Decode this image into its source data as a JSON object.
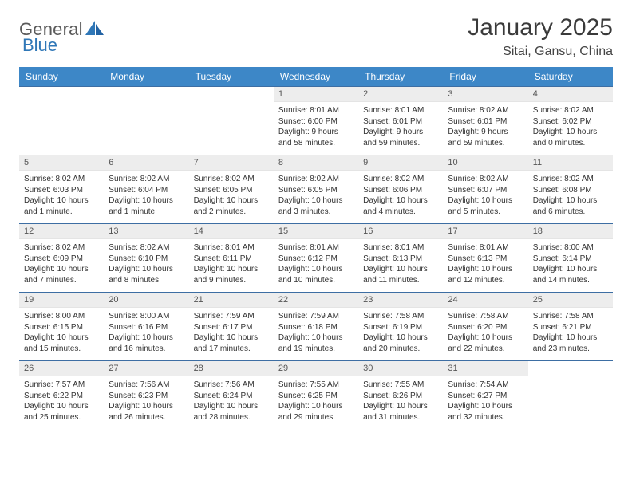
{
  "brand": {
    "part1": "General",
    "part2": "Blue"
  },
  "title": "January 2025",
  "location": "Sitai, Gansu, China",
  "theme": {
    "header_bg": "#3d87c7",
    "header_text": "#ffffff",
    "row_border": "#3d6ea3",
    "daynum_bg": "#ededed",
    "daynum_text": "#555555",
    "body_text": "#333333",
    "logo_gray": "#5a5a5a",
    "logo_blue": "#2f77b7"
  },
  "weekdays": [
    "Sunday",
    "Monday",
    "Tuesday",
    "Wednesday",
    "Thursday",
    "Friday",
    "Saturday"
  ],
  "weeks": [
    [
      null,
      null,
      null,
      {
        "n": "1",
        "sr": "Sunrise: 8:01 AM",
        "ss": "Sunset: 6:00 PM",
        "d1": "Daylight: 9 hours",
        "d2": "and 58 minutes."
      },
      {
        "n": "2",
        "sr": "Sunrise: 8:01 AM",
        "ss": "Sunset: 6:01 PM",
        "d1": "Daylight: 9 hours",
        "d2": "and 59 minutes."
      },
      {
        "n": "3",
        "sr": "Sunrise: 8:02 AM",
        "ss": "Sunset: 6:01 PM",
        "d1": "Daylight: 9 hours",
        "d2": "and 59 minutes."
      },
      {
        "n": "4",
        "sr": "Sunrise: 8:02 AM",
        "ss": "Sunset: 6:02 PM",
        "d1": "Daylight: 10 hours",
        "d2": "and 0 minutes."
      }
    ],
    [
      {
        "n": "5",
        "sr": "Sunrise: 8:02 AM",
        "ss": "Sunset: 6:03 PM",
        "d1": "Daylight: 10 hours",
        "d2": "and 1 minute."
      },
      {
        "n": "6",
        "sr": "Sunrise: 8:02 AM",
        "ss": "Sunset: 6:04 PM",
        "d1": "Daylight: 10 hours",
        "d2": "and 1 minute."
      },
      {
        "n": "7",
        "sr": "Sunrise: 8:02 AM",
        "ss": "Sunset: 6:05 PM",
        "d1": "Daylight: 10 hours",
        "d2": "and 2 minutes."
      },
      {
        "n": "8",
        "sr": "Sunrise: 8:02 AM",
        "ss": "Sunset: 6:05 PM",
        "d1": "Daylight: 10 hours",
        "d2": "and 3 minutes."
      },
      {
        "n": "9",
        "sr": "Sunrise: 8:02 AM",
        "ss": "Sunset: 6:06 PM",
        "d1": "Daylight: 10 hours",
        "d2": "and 4 minutes."
      },
      {
        "n": "10",
        "sr": "Sunrise: 8:02 AM",
        "ss": "Sunset: 6:07 PM",
        "d1": "Daylight: 10 hours",
        "d2": "and 5 minutes."
      },
      {
        "n": "11",
        "sr": "Sunrise: 8:02 AM",
        "ss": "Sunset: 6:08 PM",
        "d1": "Daylight: 10 hours",
        "d2": "and 6 minutes."
      }
    ],
    [
      {
        "n": "12",
        "sr": "Sunrise: 8:02 AM",
        "ss": "Sunset: 6:09 PM",
        "d1": "Daylight: 10 hours",
        "d2": "and 7 minutes."
      },
      {
        "n": "13",
        "sr": "Sunrise: 8:02 AM",
        "ss": "Sunset: 6:10 PM",
        "d1": "Daylight: 10 hours",
        "d2": "and 8 minutes."
      },
      {
        "n": "14",
        "sr": "Sunrise: 8:01 AM",
        "ss": "Sunset: 6:11 PM",
        "d1": "Daylight: 10 hours",
        "d2": "and 9 minutes."
      },
      {
        "n": "15",
        "sr": "Sunrise: 8:01 AM",
        "ss": "Sunset: 6:12 PM",
        "d1": "Daylight: 10 hours",
        "d2": "and 10 minutes."
      },
      {
        "n": "16",
        "sr": "Sunrise: 8:01 AM",
        "ss": "Sunset: 6:13 PM",
        "d1": "Daylight: 10 hours",
        "d2": "and 11 minutes."
      },
      {
        "n": "17",
        "sr": "Sunrise: 8:01 AM",
        "ss": "Sunset: 6:13 PM",
        "d1": "Daylight: 10 hours",
        "d2": "and 12 minutes."
      },
      {
        "n": "18",
        "sr": "Sunrise: 8:00 AM",
        "ss": "Sunset: 6:14 PM",
        "d1": "Daylight: 10 hours",
        "d2": "and 14 minutes."
      }
    ],
    [
      {
        "n": "19",
        "sr": "Sunrise: 8:00 AM",
        "ss": "Sunset: 6:15 PM",
        "d1": "Daylight: 10 hours",
        "d2": "and 15 minutes."
      },
      {
        "n": "20",
        "sr": "Sunrise: 8:00 AM",
        "ss": "Sunset: 6:16 PM",
        "d1": "Daylight: 10 hours",
        "d2": "and 16 minutes."
      },
      {
        "n": "21",
        "sr": "Sunrise: 7:59 AM",
        "ss": "Sunset: 6:17 PM",
        "d1": "Daylight: 10 hours",
        "d2": "and 17 minutes."
      },
      {
        "n": "22",
        "sr": "Sunrise: 7:59 AM",
        "ss": "Sunset: 6:18 PM",
        "d1": "Daylight: 10 hours",
        "d2": "and 19 minutes."
      },
      {
        "n": "23",
        "sr": "Sunrise: 7:58 AM",
        "ss": "Sunset: 6:19 PM",
        "d1": "Daylight: 10 hours",
        "d2": "and 20 minutes."
      },
      {
        "n": "24",
        "sr": "Sunrise: 7:58 AM",
        "ss": "Sunset: 6:20 PM",
        "d1": "Daylight: 10 hours",
        "d2": "and 22 minutes."
      },
      {
        "n": "25",
        "sr": "Sunrise: 7:58 AM",
        "ss": "Sunset: 6:21 PM",
        "d1": "Daylight: 10 hours",
        "d2": "and 23 minutes."
      }
    ],
    [
      {
        "n": "26",
        "sr": "Sunrise: 7:57 AM",
        "ss": "Sunset: 6:22 PM",
        "d1": "Daylight: 10 hours",
        "d2": "and 25 minutes."
      },
      {
        "n": "27",
        "sr": "Sunrise: 7:56 AM",
        "ss": "Sunset: 6:23 PM",
        "d1": "Daylight: 10 hours",
        "d2": "and 26 minutes."
      },
      {
        "n": "28",
        "sr": "Sunrise: 7:56 AM",
        "ss": "Sunset: 6:24 PM",
        "d1": "Daylight: 10 hours",
        "d2": "and 28 minutes."
      },
      {
        "n": "29",
        "sr": "Sunrise: 7:55 AM",
        "ss": "Sunset: 6:25 PM",
        "d1": "Daylight: 10 hours",
        "d2": "and 29 minutes."
      },
      {
        "n": "30",
        "sr": "Sunrise: 7:55 AM",
        "ss": "Sunset: 6:26 PM",
        "d1": "Daylight: 10 hours",
        "d2": "and 31 minutes."
      },
      {
        "n": "31",
        "sr": "Sunrise: 7:54 AM",
        "ss": "Sunset: 6:27 PM",
        "d1": "Daylight: 10 hours",
        "d2": "and 32 minutes."
      },
      null
    ]
  ]
}
